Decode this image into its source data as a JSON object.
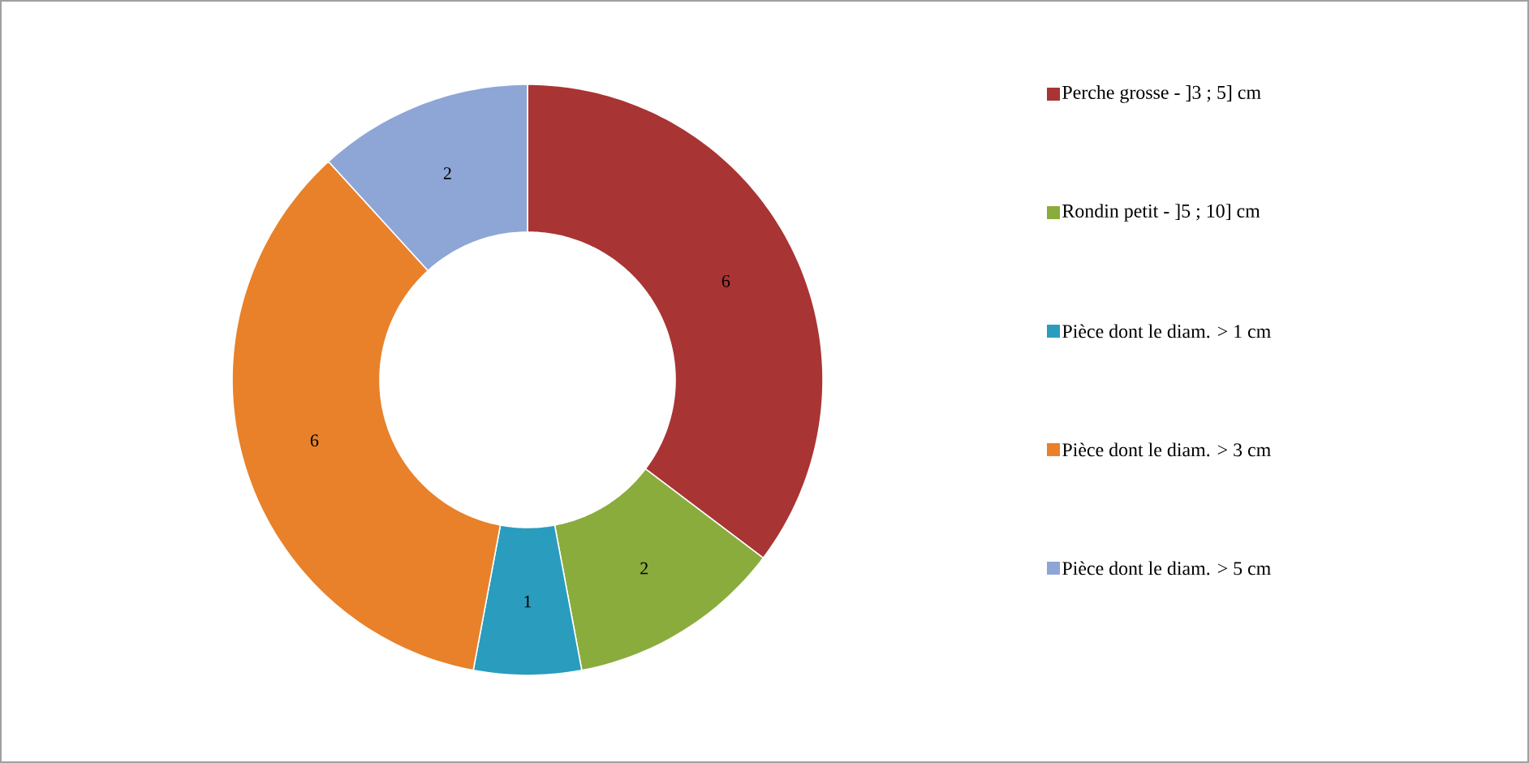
{
  "chart_data": {
    "type": "donut",
    "categories": [
      "Perche grosse  -  ]3 ; 5] cm",
      "Rondin petit  -  ]5 ; 10] cm",
      "Pièce dont le diam. > 1 cm",
      "Pièce dont le diam. > 3 cm",
      "Pièce dont le diam. > 5 cm"
    ],
    "values": [
      6,
      2,
      1,
      6,
      2
    ],
    "colors": [
      "#a93434",
      "#8aac3c",
      "#2a9cbd",
      "#e8812a",
      "#8ea6d6"
    ],
    "data_labels": true,
    "legend": "right"
  }
}
